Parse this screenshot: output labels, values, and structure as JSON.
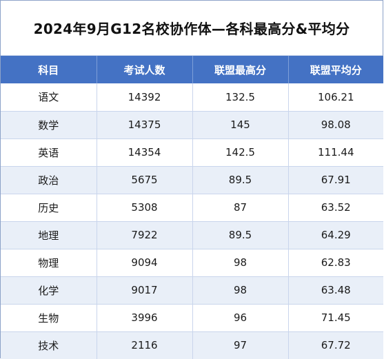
{
  "title": "2024年9月G12名校协作体—各科最高分&平均分",
  "colors": {
    "header_bg": "#4472c4",
    "header_text": "#ffffff",
    "stripe": "#e9eff8"
  },
  "table": {
    "headers": [
      "科目",
      "考试人数",
      "联盟最高分",
      "联盟平均分"
    ],
    "rows": [
      [
        "语文",
        "14392",
        "132.5",
        "106.21"
      ],
      [
        "数学",
        "14375",
        "145",
        "98.08"
      ],
      [
        "英语",
        "14354",
        "142.5",
        "111.44"
      ],
      [
        "政治",
        "5675",
        "89.5",
        "67.91"
      ],
      [
        "历史",
        "5308",
        "87",
        "63.52"
      ],
      [
        "地理",
        "7922",
        "89.5",
        "64.29"
      ],
      [
        "物理",
        "9094",
        "98",
        "62.83"
      ],
      [
        "化学",
        "9017",
        "98",
        "63.48"
      ],
      [
        "生物",
        "3996",
        "96",
        "71.45"
      ],
      [
        "技术",
        "2116",
        "97",
        "67.72"
      ]
    ]
  }
}
